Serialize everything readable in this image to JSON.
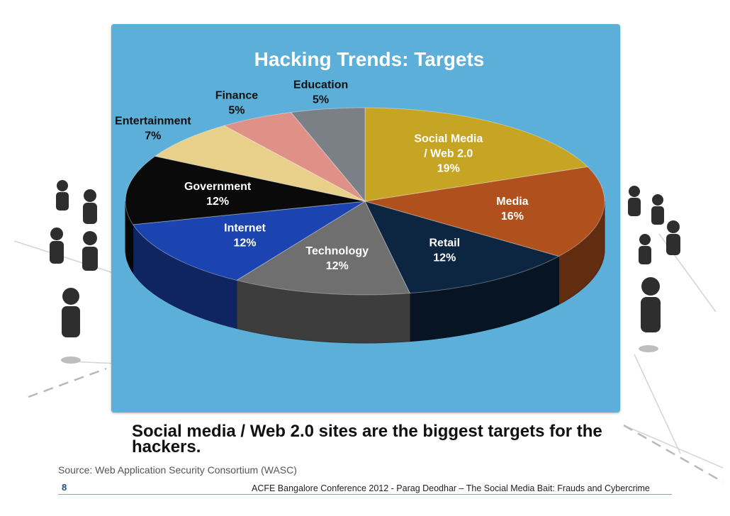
{
  "chart_data": {
    "type": "pie",
    "title": "Hacking Trends: Targets",
    "categories": [
      "Social Media / Web 2.0",
      "Media",
      "Retail",
      "Technology",
      "Internet",
      "Government",
      "Entertainment",
      "Finance",
      "Education"
    ],
    "values": [
      19,
      16,
      12,
      12,
      12,
      12,
      7,
      5,
      5
    ],
    "value_labels": [
      "19%",
      "16%",
      "12%",
      "12%",
      "12%",
      "12%",
      "7%",
      "5%",
      "5%"
    ],
    "label_lines": [
      [
        "Social Media",
        "/ Web 2.0",
        "19%"
      ],
      [
        "Media",
        "16%"
      ],
      [
        "Retail",
        "12%"
      ],
      [
        "Technology",
        "12%"
      ],
      [
        "Internet",
        "12%"
      ],
      [
        "Government",
        "12%"
      ],
      [
        "Entertainment",
        "7%"
      ],
      [
        "Finance",
        "5%"
      ],
      [
        "Education",
        "5%"
      ]
    ],
    "colors": [
      "#c6a524",
      "#b0501d",
      "#0c2540",
      "#6f6f6f",
      "#1c44b0",
      "#0a0a0a",
      "#e8d08a",
      "#df9187",
      "#7b7f86"
    ],
    "label_colors": [
      "#ffffff",
      "#ffffff",
      "#ffffff",
      "#ffffff",
      "#ffffff",
      "#ffffff",
      "#111111",
      "#111111",
      "#111111"
    ],
    "panel_color": "#5cafd9",
    "title_color": "#ffffff",
    "style": "3d-pie"
  },
  "caption": "Social media / Web 2.0 sites are the biggest targets for the hackers.",
  "source": "Source: Web Application Security Consortium (WASC)",
  "page_number": "8",
  "footer": "ACFE Bangalore Conference 2012 - Parag Deodhar – The Social Media Bait: Frauds and Cybercrime"
}
